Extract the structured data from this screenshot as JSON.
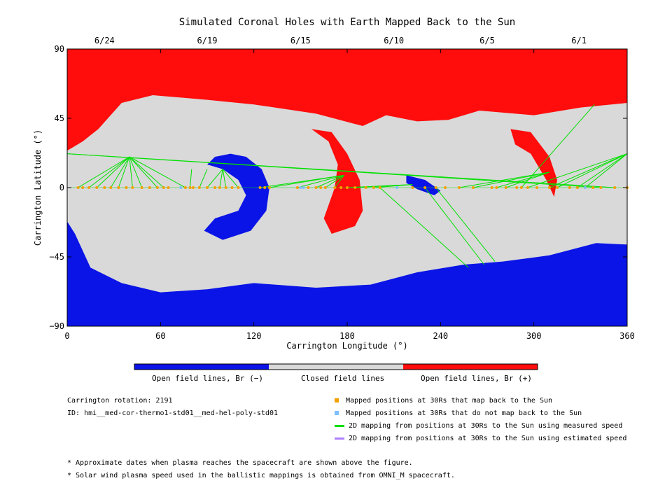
{
  "chart_data": {
    "type": "heatmap",
    "title": "Simulated Coronal Holes with Earth Mapped Back to the Sun",
    "xlabel": "Carrington Longitude (°)",
    "ylabel": "Carrington Latitude (°)",
    "xlim": [
      0,
      360
    ],
    "ylim": [
      -90,
      90
    ],
    "x_ticks": [
      0,
      60,
      120,
      180,
      240,
      300,
      360
    ],
    "y_ticks": [
      90,
      45,
      0,
      -45,
      -90
    ],
    "top_date_ticks": [
      {
        "label": "6/24",
        "lon": 24
      },
      {
        "label": "6/19",
        "lon": 90
      },
      {
        "label": "6/15",
        "lon": 150
      },
      {
        "label": "6/10",
        "lon": 210
      },
      {
        "label": "6/5",
        "lon": 270
      },
      {
        "label": "6/1",
        "lon": 329
      }
    ],
    "colorbar": [
      {
        "label": "Open field lines, Br (−)",
        "color": "#0a14e6"
      },
      {
        "label": "Closed field lines",
        "color": "#d9d9d9"
      },
      {
        "label": "Open field lines, Br (+)",
        "color": "#ff0c0c"
      }
    ],
    "regions": [
      {
        "name": "north-positive-hole",
        "color": "#ff0c0c",
        "points": [
          [
            0,
            90
          ],
          [
            360,
            90
          ],
          [
            360,
            55
          ],
          [
            330,
            52
          ],
          [
            300,
            47
          ],
          [
            265,
            50
          ],
          [
            245,
            44
          ],
          [
            225,
            43
          ],
          [
            205,
            47
          ],
          [
            190,
            40
          ],
          [
            160,
            48
          ],
          [
            120,
            54
          ],
          [
            90,
            57
          ],
          [
            55,
            60
          ],
          [
            35,
            55
          ],
          [
            20,
            38
          ],
          [
            10,
            30
          ],
          [
            0,
            24
          ]
        ]
      },
      {
        "name": "south-negative-hole",
        "color": "#0a14e6",
        "points": [
          [
            0,
            -90
          ],
          [
            360,
            -90
          ],
          [
            360,
            -37
          ],
          [
            340,
            -36
          ],
          [
            310,
            -44
          ],
          [
            280,
            -48
          ],
          [
            255,
            -50
          ],
          [
            225,
            -55
          ],
          [
            195,
            -63
          ],
          [
            160,
            -65
          ],
          [
            120,
            -62
          ],
          [
            90,
            -66
          ],
          [
            60,
            -68
          ],
          [
            35,
            -62
          ],
          [
            15,
            -52
          ],
          [
            5,
            -30
          ],
          [
            0,
            -22
          ]
        ]
      },
      {
        "name": "negative-hole-arc",
        "color": "#0a14e6",
        "points": [
          [
            95,
            20
          ],
          [
            105,
            22
          ],
          [
            115,
            20
          ],
          [
            125,
            12
          ],
          [
            130,
            0
          ],
          [
            128,
            -15
          ],
          [
            118,
            -28
          ],
          [
            100,
            -34
          ],
          [
            88,
            -28
          ],
          [
            95,
            -20
          ],
          [
            110,
            -15
          ],
          [
            115,
            -5
          ],
          [
            110,
            5
          ],
          [
            100,
            12
          ],
          [
            90,
            15
          ]
        ]
      },
      {
        "name": "positive-hole-center",
        "color": "#ff0c0c",
        "points": [
          [
            157,
            38
          ],
          [
            170,
            36
          ],
          [
            180,
            22
          ],
          [
            188,
            5
          ],
          [
            190,
            -15
          ],
          [
            185,
            -25
          ],
          [
            170,
            -30
          ],
          [
            165,
            -20
          ],
          [
            172,
            0
          ],
          [
            174,
            15
          ],
          [
            168,
            30
          ]
        ]
      },
      {
        "name": "positive-hole-east",
        "color": "#ff0c0c",
        "points": [
          [
            285,
            38
          ],
          [
            298,
            36
          ],
          [
            310,
            20
          ],
          [
            315,
            5
          ],
          [
            313,
            -6
          ],
          [
            308,
            5
          ],
          [
            298,
            22
          ],
          [
            288,
            28
          ]
        ]
      },
      {
        "name": "negative-hole-east",
        "color": "#0a14e6",
        "points": [
          [
            218,
            8
          ],
          [
            230,
            5
          ],
          [
            240,
            -2
          ],
          [
            236,
            -5
          ],
          [
            225,
            -1
          ],
          [
            218,
            3
          ]
        ]
      }
    ],
    "mapped_points_back": [
      7,
      10,
      14,
      19,
      24,
      28,
      33,
      38,
      42,
      48,
      53,
      58,
      62,
      65,
      76,
      79,
      81,
      85,
      90,
      95,
      98,
      102,
      106,
      110,
      124,
      127,
      130,
      148,
      155,
      160,
      163,
      166,
      172,
      176,
      180,
      185,
      192,
      197,
      201,
      222,
      230,
      237,
      243,
      252,
      261,
      273,
      276,
      282,
      289,
      292,
      296,
      302,
      310,
      315,
      323,
      328,
      333,
      338,
      343,
      352,
      360
    ],
    "mapped_points_no_back": [
      73,
      150,
      152,
      212,
      333
    ],
    "green_lines_measured": 62,
    "purple_lines_estimated": 0
  },
  "legend": {
    "mapped_back": "Mapped positions at 30Rs that map back to the Sun",
    "not_mapped_back": "Mapped positions at 30Rs that do not map back to the Sun",
    "measured_speed": "2D mapping from positions at 30Rs to the Sun using measured speed",
    "estimated_speed": "2D mapping from positions at 30Rs to the Sun using estimated speed"
  },
  "info": {
    "rotation": "Carrington rotation: 2191",
    "id": "ID: hmi__med-cor-thermo1-std01__med-hel-poly-std01"
  },
  "notes": [
    "* Approximate dates when plasma reaches the spacecraft are shown above the figure.",
    "* Solar wind plasma speed used in the ballistic mappings is obtained from OMNI_M spacecraft."
  ],
  "colors": {
    "closed": "#d9d9d9",
    "positive": "#ff0c0c",
    "negative": "#0a14e6",
    "mapped": "#f5a000",
    "unmapped": "#7fbfff",
    "measured": "#00e000",
    "estimated": "#b07fff"
  }
}
